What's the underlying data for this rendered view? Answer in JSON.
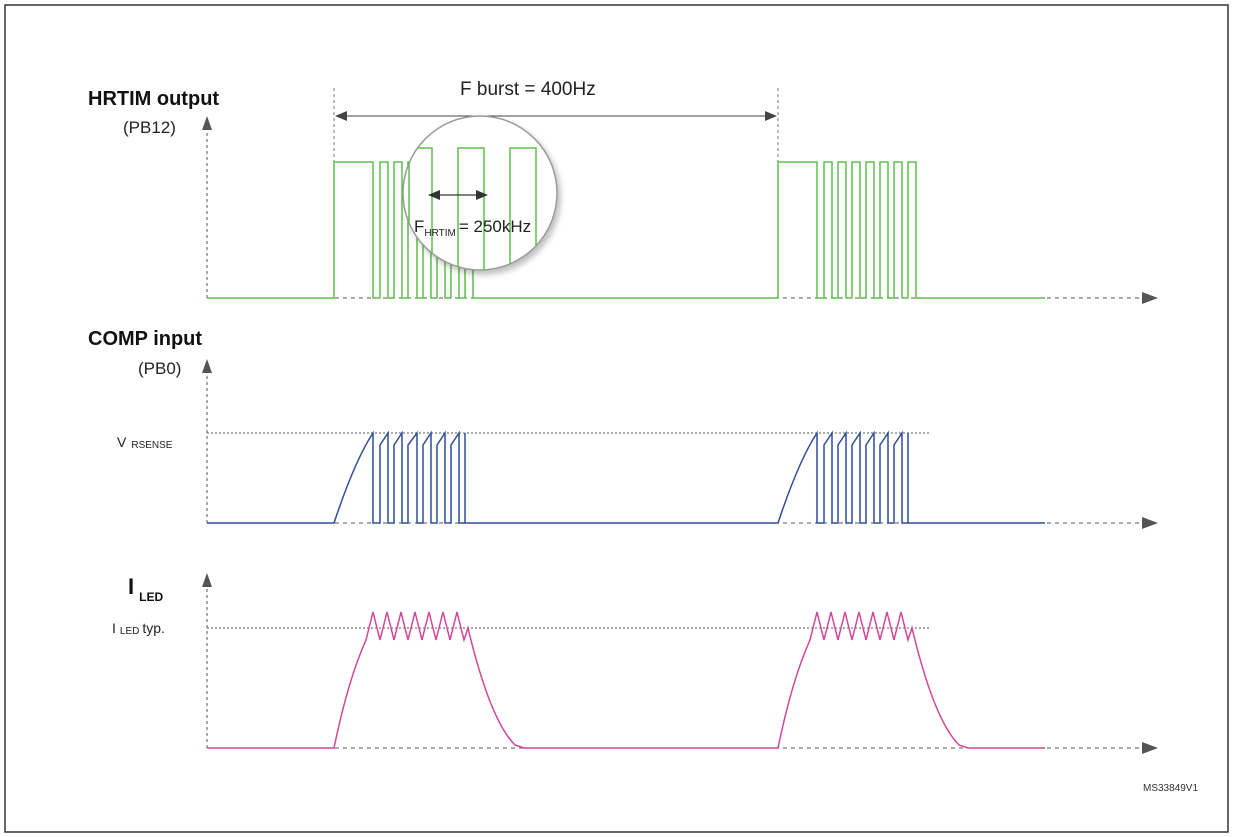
{
  "colors": {
    "hrtim_signal": "#5cbf4a",
    "comp_signal": "#2e4f9a",
    "led_signal": "#d2459c",
    "axis": "#555555",
    "frame": "#333333"
  },
  "hrtim": {
    "title": "HRTIM output",
    "pin": "(PB12)",
    "burst_label": "F burst = 400Hz",
    "freq_prefix": "F",
    "freq_sub": "HRTIM",
    "freq_suffix": "= 250kHz"
  },
  "comp": {
    "title": "COMP input",
    "pin": "(PB0)",
    "level_main": "V",
    "level_sub": "RSENSE"
  },
  "led": {
    "title_main": "I",
    "title_sub": "LED",
    "level_main": "I",
    "level_sub": "LED",
    "level_suffix": "typ."
  },
  "figure_id": "MS33849V1",
  "icons": {
    "axis_arrow": "arrow-head-icon",
    "magnifier": "magnifier-circle-icon"
  }
}
